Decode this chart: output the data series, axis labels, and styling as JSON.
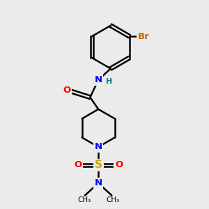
{
  "background_color": "#ebebeb",
  "bond_color": "#000000",
  "bond_width": 1.8,
  "atom_colors": {
    "N": "#0000ff",
    "O": "#ff0000",
    "S": "#ccaa00",
    "Br": "#cc6600",
    "H": "#008080",
    "C": "#000000"
  },
  "font_size": 9.5,
  "fig_size": [
    3.0,
    3.0
  ],
  "dpi": 100
}
